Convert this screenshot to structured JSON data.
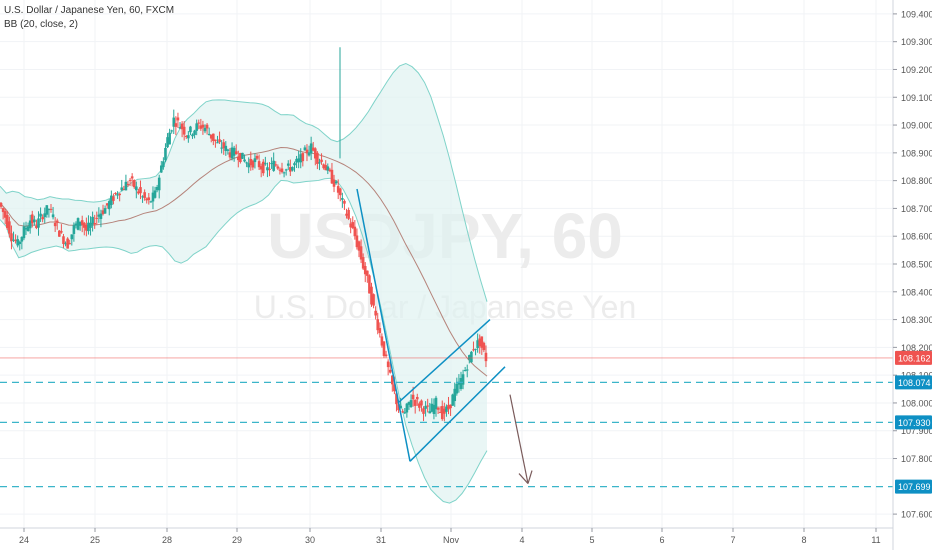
{
  "legend": {
    "symbol_line": "U.S. Dollar / Japanese Yen, 60, FXCM",
    "indicator_line": "BB (20, close, 2)"
  },
  "watermark": {
    "ticker": "USDJPY, 60",
    "name": "U.S. Dollar / Japanese Yen"
  },
  "colors": {
    "up": "#26a69a",
    "down": "#ef5350",
    "bb_fill": "#e0f2f1",
    "bb_line": "#7fd3c9",
    "basis_line": "#b5837a",
    "level_line": "#3bb5c9",
    "pattern_line": "#0e90c4",
    "arrow": "#7a5b5b",
    "last_price": "#ef5350",
    "level_badge": "#0e90c4"
  },
  "chart_data": {
    "type": "candlestick",
    "symbol": "U.S. Dollar / Japanese Yen, 60, FXCM",
    "indicator": "BB (20, close, 2)",
    "ylim": [
      107.55,
      109.45
    ],
    "y_ticks": [
      107.6,
      107.8,
      107.9,
      108.0,
      108.1,
      108.2,
      108.3,
      108.4,
      108.5,
      108.6,
      108.7,
      108.8,
      108.9,
      109.0,
      109.1,
      109.2,
      109.3,
      109.4
    ],
    "y_tick_labels": [
      "107.600",
      "107.800",
      "107.900",
      "108.000",
      "108.100",
      "108.200",
      "108.300",
      "108.400",
      "108.500",
      "108.600",
      "108.700",
      "108.800",
      "108.900",
      "109.000",
      "109.100",
      "109.200",
      "109.300",
      "109.400"
    ],
    "x_tick_labels": [
      "24",
      "25",
      "28",
      "29",
      "30",
      "31",
      "Nov",
      "4",
      "5",
      "6",
      "7",
      "8",
      "11"
    ],
    "levels": [
      {
        "value": 108.074,
        "label": "108.074"
      },
      {
        "value": 107.93,
        "label": "107.930"
      },
      {
        "value": 107.699,
        "label": "107.699"
      }
    ],
    "last_price": {
      "value": 108.162,
      "label": "108.162"
    },
    "pattern": {
      "type": "rising wedge / channel with downward arrow",
      "impulse_start": {
        "x_label": "31",
        "value": 108.77
      },
      "impulse_end": {
        "x_label": "31",
        "value": 107.79
      },
      "upper_line": [
        108.0,
        108.3
      ],
      "lower_line": [
        107.79,
        108.13
      ],
      "arrow_to": 107.71
    },
    "price_path": [
      108.72,
      108.67,
      108.6,
      108.57,
      108.62,
      108.66,
      108.64,
      108.68,
      108.7,
      108.65,
      108.6,
      108.57,
      108.63,
      108.66,
      108.62,
      108.65,
      108.68,
      108.7,
      108.73,
      108.76,
      108.78,
      108.8,
      108.77,
      108.74,
      108.72,
      108.75,
      108.85,
      108.95,
      109.02,
      109.0,
      108.97,
      108.98,
      109.0,
      108.99,
      108.96,
      108.93,
      108.92,
      108.9,
      108.9,
      108.88,
      108.86,
      108.87,
      108.85,
      108.84,
      108.86,
      108.85,
      108.84,
      108.85,
      108.87,
      108.9,
      108.92,
      108.88,
      108.86,
      108.82,
      108.78,
      108.72,
      108.66,
      108.6,
      108.52,
      108.44,
      108.34,
      108.25,
      108.15,
      108.06,
      107.98,
      107.96,
      108.02,
      108.0,
      107.98,
      107.97,
      108.0,
      107.96,
      107.98,
      108.04,
      108.08,
      108.14,
      108.2,
      108.22,
      108.16
    ]
  }
}
